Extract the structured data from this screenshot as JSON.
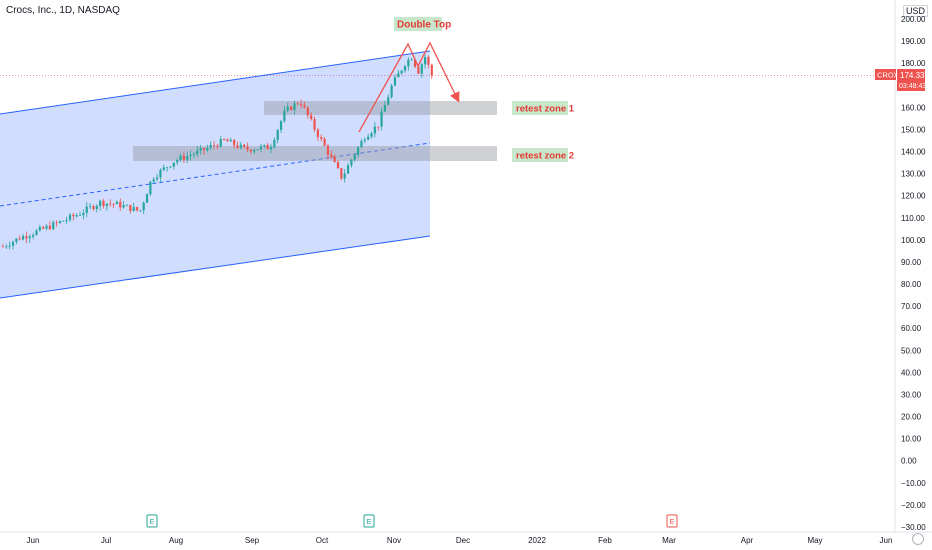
{
  "header": {
    "title": "Crocs, Inc., 1D, NASDAQ",
    "currency": "USD"
  },
  "price_tag": {
    "symbol": "CROX",
    "price": "174.33",
    "countdown": "03:48:43"
  },
  "annotations": {
    "double_top": "Double Top",
    "retest_zone_1": "retest zone 1",
    "retest_zone_2": "retest zone 2"
  },
  "events": [
    {
      "label": "E",
      "month": "Aug",
      "color": "#26a69a"
    },
    {
      "label": "E",
      "month": "Nov",
      "color": "#26a69a"
    },
    {
      "label": "E",
      "month": "Mar",
      "color": "#ef5350"
    }
  ],
  "colors": {
    "up": "#26a69a",
    "down": "#ef5350",
    "channel": "#2962ff",
    "label_bg": "#c8e6c9"
  },
  "chart_data": {
    "type": "candlestick",
    "title": "Crocs, Inc., 1D, NASDAQ",
    "y_ticks": [
      200,
      190,
      180,
      170,
      160,
      150,
      140,
      130,
      120,
      110,
      100,
      90,
      80,
      70,
      60,
      50,
      40,
      30,
      20,
      10,
      0,
      -10,
      -20,
      -30
    ],
    "ylim": [
      -30,
      200
    ],
    "x_ticks": [
      "Jun",
      "Jul",
      "Aug",
      "Sep",
      "Oct",
      "Nov",
      "Dec",
      "2022",
      "Feb",
      "Mar",
      "Apr",
      "May",
      "Jun"
    ],
    "last_price": 174.33,
    "close_path": [
      [
        "Jun",
        97
      ],
      [
        "Jun",
        101
      ],
      [
        "Jun",
        104
      ],
      [
        "Jul",
        107
      ],
      [
        "Jul",
        112
      ],
      [
        "Jul",
        116
      ],
      [
        "Jul",
        118
      ],
      [
        "Jul",
        113
      ],
      [
        "Aug",
        128
      ],
      [
        "Aug",
        136
      ],
      [
        "Aug",
        140
      ],
      [
        "Aug",
        145
      ],
      [
        "Sep",
        141
      ],
      [
        "Sep",
        142
      ],
      [
        "Sep",
        158
      ],
      [
        "Sep",
        163
      ],
      [
        "Sep",
        155
      ],
      [
        "Oct",
        140
      ],
      [
        "Oct",
        130
      ],
      [
        "Oct",
        136
      ],
      [
        "Oct",
        145
      ],
      [
        "Oct",
        152
      ],
      [
        "Nov",
        165
      ],
      [
        "Nov",
        178
      ],
      [
        "Nov",
        183
      ],
      [
        "Nov",
        178
      ],
      [
        "Nov",
        183
      ],
      [
        "Nov",
        174.33
      ]
    ]
  }
}
